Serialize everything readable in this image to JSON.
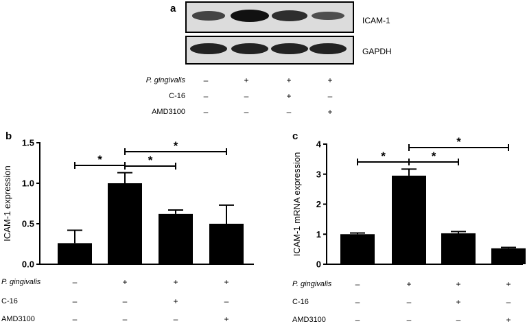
{
  "panel_a": {
    "letter": "a",
    "bands": [
      {
        "name": "ICAM-1",
        "intensities": [
          0.55,
          1.0,
          0.75,
          0.45
        ]
      },
      {
        "name": "GAPDH",
        "intensities": [
          0.85,
          0.85,
          0.85,
          0.85
        ]
      }
    ],
    "conditions": [
      {
        "label": "P. gingivalis",
        "italic": true,
        "signs": [
          "–",
          "+",
          "+",
          "+"
        ]
      },
      {
        "label": "C-16",
        "italic": false,
        "signs": [
          "–",
          "–",
          "+",
          "–"
        ]
      },
      {
        "label": "AMD3100",
        "italic": false,
        "signs": [
          "–",
          "–",
          "–",
          "+"
        ]
      }
    ]
  },
  "chart_data": [
    {
      "type": "bar",
      "panel": "b",
      "ylabel": "ICAM-1 expression",
      "ylim": [
        0,
        1.5
      ],
      "yticks": [
        "0.0",
        "0.5",
        "1.0",
        "1.5"
      ],
      "values": [
        0.26,
        1.0,
        0.62,
        0.5
      ],
      "errors": [
        0.16,
        0.13,
        0.05,
        0.23
      ],
      "significance": [
        {
          "from": 0,
          "to": 1,
          "label": "*"
        },
        {
          "from": 1,
          "to": 2,
          "label": "*"
        },
        {
          "from": 1,
          "to": 3,
          "label": "*"
        }
      ],
      "conditions": [
        {
          "label": "P. gingivalis",
          "italic": true,
          "signs": [
            "–",
            "+",
            "+",
            "+"
          ]
        },
        {
          "label": "C-16",
          "italic": false,
          "signs": [
            "–",
            "–",
            "+",
            "–"
          ]
        },
        {
          "label": "AMD3100",
          "italic": false,
          "signs": [
            "–",
            "–",
            "–",
            "+"
          ]
        }
      ]
    },
    {
      "type": "bar",
      "panel": "c",
      "ylabel": "ICAM-1 mRNA expression",
      "ylim": [
        0,
        4
      ],
      "yticks": [
        "0",
        "1",
        "2",
        "3",
        "4"
      ],
      "values": [
        1.0,
        2.95,
        1.03,
        0.53
      ],
      "errors": [
        0.04,
        0.22,
        0.06,
        0.03
      ],
      "significance": [
        {
          "from": 0,
          "to": 1,
          "label": "*"
        },
        {
          "from": 1,
          "to": 2,
          "label": "*"
        },
        {
          "from": 1,
          "to": 3,
          "label": "*"
        }
      ],
      "conditions": [
        {
          "label": "P. gingivalis",
          "italic": true,
          "signs": [
            "–",
            "+",
            "+",
            "+"
          ]
        },
        {
          "label": "C-16",
          "italic": false,
          "signs": [
            "–",
            "–",
            "+",
            "–"
          ]
        },
        {
          "label": "AMD3100",
          "italic": false,
          "signs": [
            "–",
            "–",
            "–",
            "+"
          ]
        }
      ]
    }
  ]
}
